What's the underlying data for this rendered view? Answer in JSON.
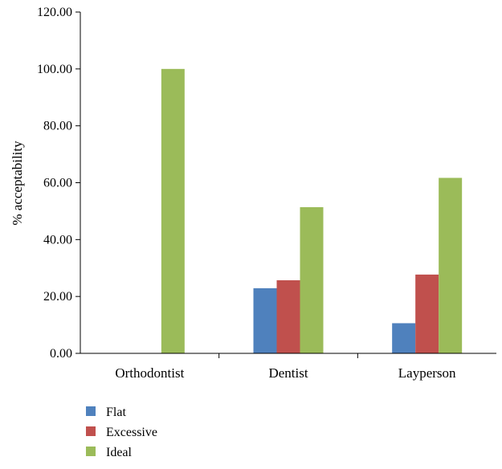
{
  "chart_data": {
    "type": "bar",
    "title": "",
    "xlabel": "",
    "ylabel": "% acceptability",
    "ylim": [
      0,
      120
    ],
    "yticks": [
      "0.00",
      "20.00",
      "40.00",
      "60.00",
      "80.00",
      "100.00",
      "120.00"
    ],
    "categories": [
      "Orthodontist",
      "Dentist",
      "Layperson"
    ],
    "series": [
      {
        "name": "Flat",
        "color": "#4f81bd",
        "values": [
          0,
          22.9,
          10.6
        ]
      },
      {
        "name": "Excessive",
        "color": "#c0504d",
        "values": [
          0,
          25.7,
          27.7
        ]
      },
      {
        "name": "Ideal",
        "color": "#9bbb59",
        "values": [
          100,
          51.4,
          61.7
        ]
      }
    ],
    "grid": false,
    "legend": "bottom-left"
  }
}
